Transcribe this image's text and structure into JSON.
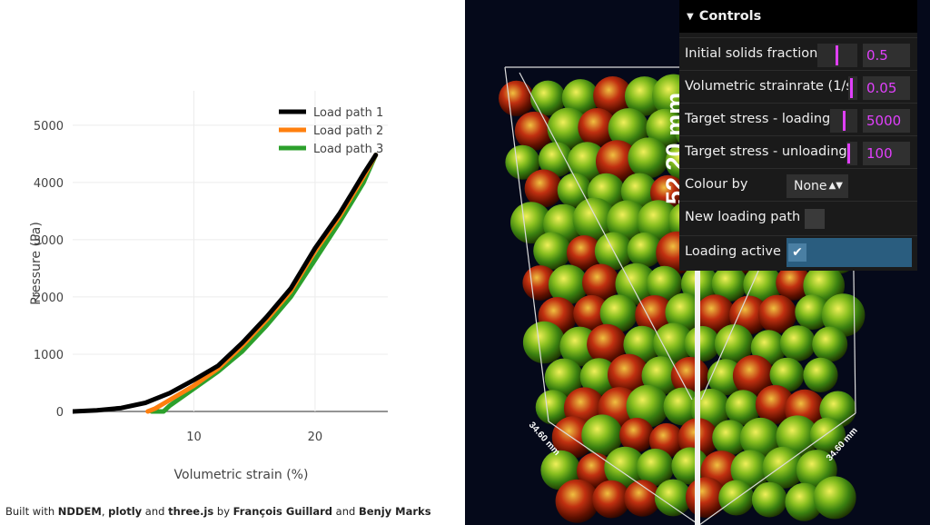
{
  "chart": {
    "ylabel": "Pressure (Pa)",
    "xlabel": "Volumetric strain (%)",
    "x_ticks": [
      "10",
      "20"
    ],
    "y_ticks": [
      "0",
      "1000",
      "2000",
      "3000",
      "4000",
      "5000"
    ],
    "legend": [
      "Load path 1",
      "Load path 2",
      "Load path 3"
    ]
  },
  "chart_data": {
    "type": "line",
    "xlabel": "Volumetric strain (%)",
    "ylabel": "Pressure (Pa)",
    "xlim": [
      0,
      26
    ],
    "ylim": [
      0,
      5600
    ],
    "grid": true,
    "legend_position": "top-right",
    "series": [
      {
        "name": "Load path 1",
        "color": "#000000",
        "x": [
          0,
          2,
          4,
          6,
          8,
          10,
          12,
          14,
          16,
          18,
          20,
          22,
          23,
          24,
          25
        ],
        "y": [
          0,
          20,
          60,
          150,
          320,
          550,
          800,
          1200,
          1650,
          2150,
          2850,
          3450,
          3800,
          4150,
          4480
        ]
      },
      {
        "name": "Load path 2",
        "color": "#ff7f0e",
        "x": [
          6.2,
          6.8,
          8,
          10,
          12,
          14,
          16,
          18,
          20,
          22,
          23,
          24,
          25
        ],
        "y": [
          0,
          50,
          200,
          450,
          750,
          1150,
          1600,
          2100,
          2800,
          3400,
          3750,
          4100,
          4480
        ]
      },
      {
        "name": "Load path 3",
        "color": "#2ca02c",
        "x": [
          6.5,
          7.5,
          8,
          10,
          12,
          14,
          16,
          18,
          20,
          22,
          23,
          24,
          25
        ],
        "y": [
          0,
          0,
          100,
          400,
          700,
          1050,
          1500,
          2000,
          2650,
          3300,
          3650,
          4000,
          4480
        ]
      }
    ]
  },
  "footer": {
    "p1": "Built with ",
    "b1": "NDDEM",
    "p2": ", ",
    "b2": "plotly",
    "p3": " and ",
    "b3": "three.js",
    "p4": " by ",
    "b4": "François Guillard",
    "p5": " and ",
    "b5": "Benjy Marks"
  },
  "scene": {
    "height_label": "52.20 mm",
    "left_dim": "34.60 mm",
    "right_dim": "34.60 mm"
  },
  "controls": {
    "title": "Controls",
    "initial_solids_fraction": {
      "label": "Initial solids fraction",
      "value": "0.5",
      "level": 0.5
    },
    "volumetric_strainrate": {
      "label": "Volumetric strainrate (1/s)",
      "value": "0.05",
      "level": 0.05
    },
    "target_stress_loading": {
      "label": "Target stress - loading",
      "value": "5000",
      "level": 0.5
    },
    "target_stress_unloading": {
      "label": "Target stress - unloading",
      "value": "100",
      "level": 0.1
    },
    "colour_by": {
      "label": "Colour by",
      "value": "None"
    },
    "new_loading_path": {
      "label": "New loading path",
      "checked": false
    },
    "loading_active": {
      "label": "Loading active",
      "checked": true
    }
  }
}
